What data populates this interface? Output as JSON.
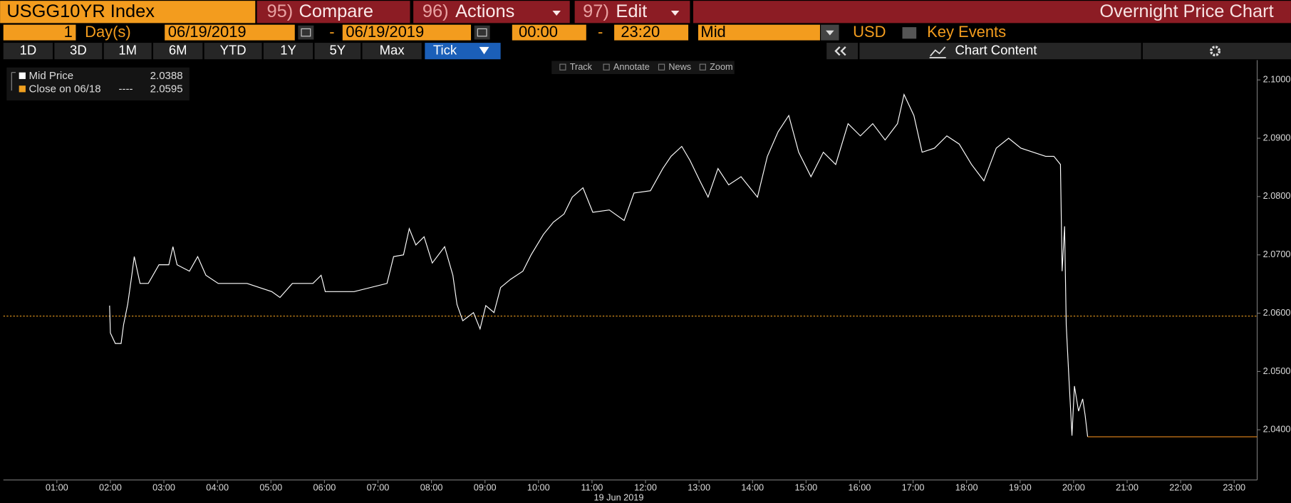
{
  "header": {
    "security": "USGG10YR Index",
    "buttons": [
      {
        "number": "95)",
        "label": "Compare"
      },
      {
        "number": "96)",
        "label": "Actions"
      },
      {
        "number": "97)",
        "label": "Edit"
      }
    ],
    "title": "Overnight Price Chart"
  },
  "settings": {
    "days": 1,
    "days_unit": "Day(s)",
    "start_date": "06/19/2019",
    "date_sep": "-",
    "end_date": "06/19/2019",
    "start_time": "00:00",
    "time_sep": "-",
    "end_time": "23:20",
    "price_field": "Mid",
    "currency": "USD",
    "key_events": "Key Events"
  },
  "periods": [
    "1D",
    "3D",
    "1M",
    "6M",
    "YTD",
    "1Y",
    "5Y",
    "Max",
    "Tick"
  ],
  "active_period": 8,
  "chart_content": "Chart Content",
  "tools": [
    "Track",
    "Annotate",
    "News",
    "Zoom"
  ],
  "chart_data": {
    "type": "line",
    "x_date_label": "19 Jun 2019",
    "x": [
      1.985,
      2.0,
      2.092,
      2.2,
      2.246,
      2.323,
      2.4,
      2.446,
      2.554,
      2.708,
      2.908,
      3.092,
      3.169,
      3.246,
      3.477,
      3.631,
      3.785,
      4.015,
      4.554,
      5.015,
      5.169,
      5.4,
      5.785,
      5.938,
      6.015,
      6.554,
      7.169,
      7.292,
      7.477,
      7.585,
      7.708,
      7.862,
      8.015,
      8.246,
      8.4,
      8.477,
      8.585,
      8.785,
      8.908,
      9.015,
      9.169,
      9.292,
      9.477,
      9.708,
      9.862,
      10.092,
      10.277,
      10.477,
      10.631,
      10.831,
      11.015,
      11.323,
      11.6,
      11.785,
      12.092,
      12.323,
      12.477,
      12.677,
      12.831,
      13.015,
      13.169,
      13.354,
      13.554,
      13.785,
      14.092,
      14.277,
      14.477,
      14.677,
      14.862,
      15.092,
      15.323,
      15.554,
      15.785,
      16.015,
      16.246,
      16.477,
      16.708,
      16.831,
      17.015,
      17.169,
      17.4,
      17.631,
      17.862,
      18.092,
      18.323,
      18.554,
      18.785,
      19.015,
      19.246,
      19.477,
      19.631,
      19.754,
      19.785,
      19.831,
      19.862,
      19.908,
      19.969,
      20.015,
      20.092,
      20.169,
      20.215,
      20.262
    ],
    "series": [
      {
        "name": "Mid Price",
        "color": "#ffffff",
        "last_value": 2.0388,
        "last_color": "#e8891c",
        "values": [
          2.0613,
          2.0566,
          2.0548,
          2.0548,
          2.058,
          2.0615,
          2.0665,
          2.0697,
          2.0651,
          2.0651,
          2.0683,
          2.0683,
          2.0714,
          2.0683,
          2.0672,
          2.0697,
          2.0665,
          2.0651,
          2.0651,
          2.0637,
          2.0627,
          2.0651,
          2.0651,
          2.0665,
          2.0637,
          2.0637,
          2.0651,
          2.0697,
          2.07,
          2.0745,
          2.0717,
          2.0731,
          2.0686,
          2.0714,
          2.0665,
          2.0615,
          2.0587,
          2.0601,
          2.0573,
          2.0613,
          2.0601,
          2.0644,
          2.0658,
          2.0672,
          2.07,
          2.0735,
          2.0756,
          2.077,
          2.0799,
          2.0815,
          2.0773,
          2.0777,
          2.0759,
          2.0806,
          2.081,
          2.0848,
          2.0869,
          2.0886,
          2.0862,
          2.0827,
          2.0799,
          2.0848,
          2.082,
          2.0834,
          2.0799,
          2.0869,
          2.0911,
          2.0939,
          2.0876,
          2.0834,
          2.0876,
          2.0855,
          2.0925,
          2.0904,
          2.0925,
          2.0897,
          2.0925,
          2.0975,
          2.0939,
          2.0876,
          2.0883,
          2.0904,
          2.089,
          2.0855,
          2.0827,
          2.0883,
          2.09,
          2.0883,
          2.0876,
          2.0869,
          2.0869,
          2.0855,
          2.0672,
          2.0749,
          2.058,
          2.0496,
          2.039,
          2.0475,
          2.0432,
          2.0453,
          2.0425,
          2.0388
        ]
      }
    ],
    "reference_line": {
      "name": "Close on 06/18",
      "leader": "----",
      "value": 2.0595,
      "color": "#f0a020"
    },
    "xlim": [
      0,
      23.43
    ],
    "xticks": [
      {
        "value": 1,
        "label": "01:00"
      },
      {
        "value": 2,
        "label": "02:00"
      },
      {
        "value": 3,
        "label": "03:00"
      },
      {
        "value": 4,
        "label": "04:00"
      },
      {
        "value": 5,
        "label": "05:00"
      },
      {
        "value": 6,
        "label": "06:00"
      },
      {
        "value": 7,
        "label": "07:00"
      },
      {
        "value": 8,
        "label": "08:00"
      },
      {
        "value": 9,
        "label": "09:00"
      },
      {
        "value": 10,
        "label": "10:00"
      },
      {
        "value": 11,
        "label": "11:00"
      },
      {
        "value": 12,
        "label": "12:00"
      },
      {
        "value": 13,
        "label": "13:00"
      },
      {
        "value": 14,
        "label": "14:00"
      },
      {
        "value": 15,
        "label": "15:00"
      },
      {
        "value": 16,
        "label": "16:00"
      },
      {
        "value": 17,
        "label": "17:00"
      },
      {
        "value": 18,
        "label": "18:00"
      },
      {
        "value": 19,
        "label": "19:00"
      },
      {
        "value": 20,
        "label": "20:00"
      },
      {
        "value": 21,
        "label": "21:00"
      },
      {
        "value": 22,
        "label": "22:00"
      },
      {
        "value": 23,
        "label": "23:00"
      }
    ],
    "ylim": [
      2.0314,
      2.1034
    ],
    "yticks": [
      {
        "value": 2.04,
        "label": "2.0400"
      },
      {
        "value": 2.05,
        "label": "2.0500"
      },
      {
        "value": 2.06,
        "label": "2.0600"
      },
      {
        "value": 2.07,
        "label": "2.0700"
      },
      {
        "value": 2.08,
        "label": "2.0800"
      },
      {
        "value": 2.09,
        "label": "2.0900"
      },
      {
        "value": 2.1,
        "label": "2.1000"
      }
    ],
    "grid": false
  }
}
